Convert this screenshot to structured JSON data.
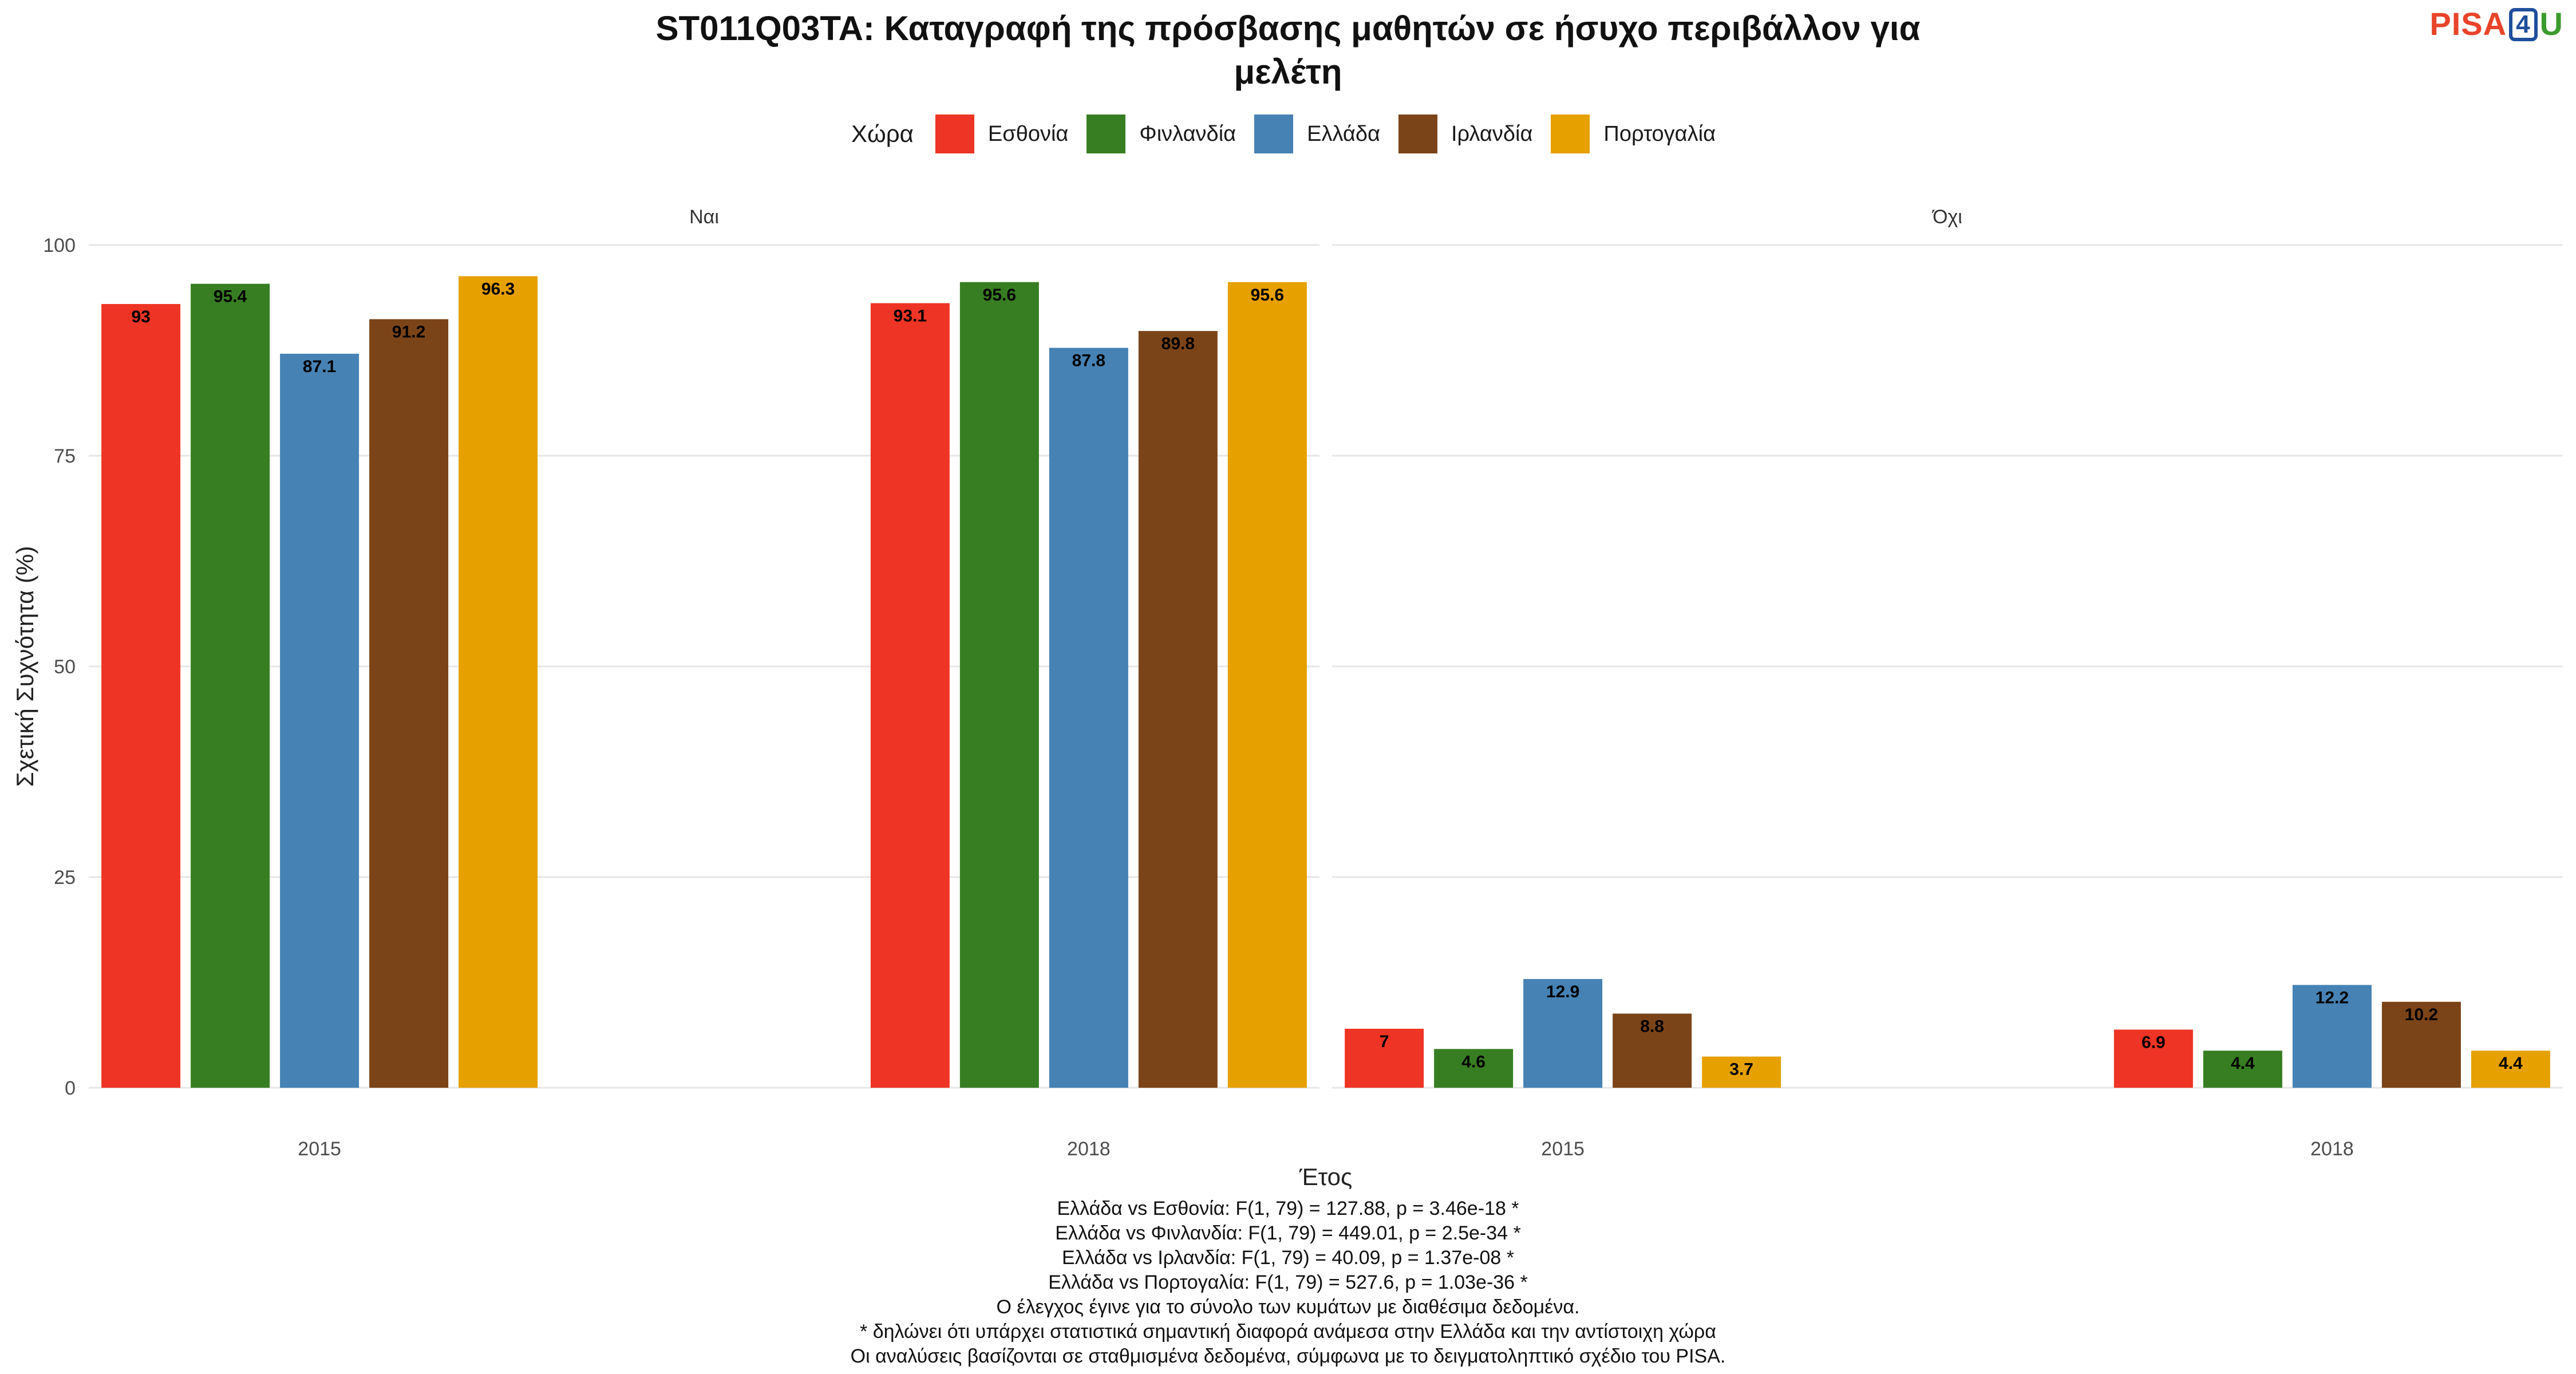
{
  "title_lines": [
    "ST011Q03TA: Καταγραφή της πρόσβασης μαθητών σε ήσυχο περιβάλλον για",
    "μελέτη"
  ],
  "logo": {
    "part1": "PISA",
    "part2": "4",
    "part3": "U",
    "colors": [
      "#e8442a",
      "#1f4e9c",
      "#3a9b2e"
    ]
  },
  "chart_data": {
    "type": "bar",
    "title": "ST011Q03TA: Καταγραφή της πρόσβασης μαθητών σε ήσυχο περιβάλλον για μελέτη",
    "xlabel": "Έτος",
    "ylabel": "Σχετική Συχνότητα (%)",
    "ylim": [
      0,
      100
    ],
    "yticks": [
      0,
      25,
      50,
      75,
      100
    ],
    "grid": true,
    "legend": {
      "title": "Χώρα",
      "position": "top"
    },
    "categories": [
      "2015",
      "2018"
    ],
    "panels": [
      {
        "name": "Ναι",
        "series": [
          {
            "name": "Εσθονία",
            "color": "#ee3424",
            "values": [
              93,
              93.1
            ]
          },
          {
            "name": "Φινλανδία",
            "color": "#377e22",
            "values": [
              95.4,
              95.6
            ]
          },
          {
            "name": "Ελλάδα",
            "color": "#4682b4",
            "values": [
              87.1,
              87.8
            ]
          },
          {
            "name": "Ιρλανδία",
            "color": "#7b4418",
            "values": [
              91.2,
              89.8
            ]
          },
          {
            "name": "Πορτογαλία",
            "color": "#e6a000",
            "values": [
              96.3,
              95.6
            ]
          }
        ]
      },
      {
        "name": "Όχι",
        "series": [
          {
            "name": "Εσθονία",
            "color": "#ee3424",
            "values": [
              7,
              6.9
            ]
          },
          {
            "name": "Φινλανδία",
            "color": "#377e22",
            "values": [
              4.6,
              4.4
            ]
          },
          {
            "name": "Ελλάδα",
            "color": "#4682b4",
            "values": [
              12.9,
              12.2
            ]
          },
          {
            "name": "Ιρλανδία",
            "color": "#7b4418",
            "values": [
              8.8,
              10.2
            ]
          },
          {
            "name": "Πορτογαλία",
            "color": "#e6a000",
            "values": [
              3.7,
              4.4
            ]
          }
        ]
      }
    ]
  },
  "notes": [
    "Ελλάδα vs Εσθονία: F(1, 79) = 127.88, p = 3.46e-18 *",
    "Ελλάδα vs Φινλανδία: F(1, 79) = 449.01, p = 2.5e-34 *",
    "Ελλάδα vs Ιρλανδία: F(1, 79) = 40.09, p = 1.37e-08 *",
    "Ελλάδα vs Πορτογαλία: F(1, 79) = 527.6, p = 1.03e-36 *",
    "Ο έλεγχος έγινε για το σύνολο των κυμάτων με διαθέσιμα δεδομένα.",
    "* δηλώνει ότι υπάρχει στατιστικά σημαντική διαφορά ανάμεσα στην Ελλάδα και την αντίστοιχη χώρα",
    "Οι αναλύσεις βασίζονται σε σταθμισμένα δεδομένα, σύμφωνα με το δειγματοληπτικό σχέδιο του PISA."
  ]
}
